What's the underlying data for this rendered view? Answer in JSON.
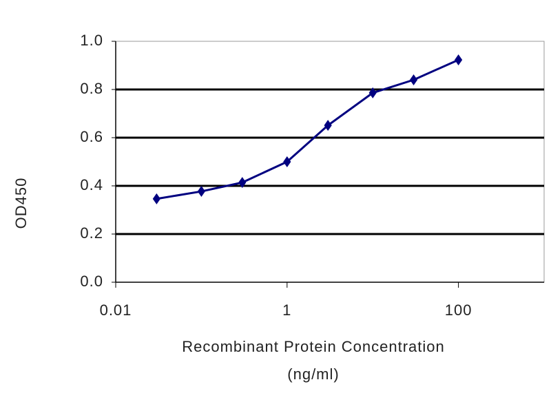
{
  "chart_data": {
    "type": "line",
    "x_scale": "log",
    "x_label": [
      "Recombinant  Protein  Concentration",
      "(ng/ml)"
    ],
    "y_label": "OD450",
    "x": [
      0.03,
      0.1,
      0.3,
      1,
      3,
      10,
      30,
      100
    ],
    "series": [
      {
        "name": "OD450",
        "color": "#000080",
        "values": [
          0.346,
          0.377,
          0.414,
          0.5,
          0.651,
          0.786,
          0.84,
          0.923
        ]
      }
    ],
    "xlim": [
      0.01,
      1000
    ],
    "xticks": [
      0.01,
      1,
      100
    ],
    "ylim": [
      0,
      1
    ],
    "yticks": [
      {
        "value": 0,
        "label": "0.0"
      },
      {
        "value": 0.2,
        "label": "0.2"
      },
      {
        "value": 0.4,
        "label": "0.4"
      },
      {
        "value": 0.6,
        "label": "0.6"
      },
      {
        "value": 0.8,
        "label": "0.8"
      },
      {
        "value": 1,
        "label": "1.0"
      }
    ],
    "grid": true,
    "grid_color": "#000000"
  }
}
